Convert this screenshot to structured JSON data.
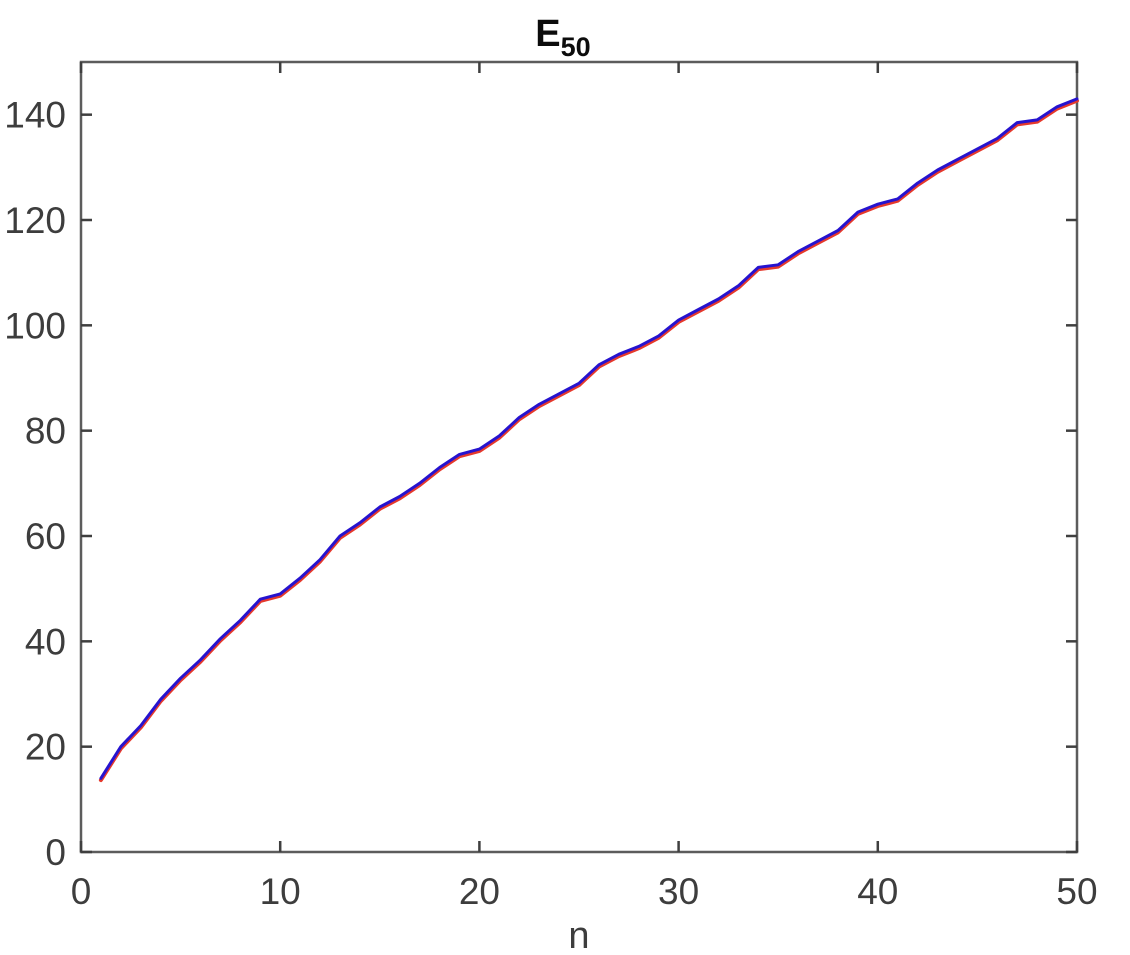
{
  "figure": {
    "background_color": "#ffffff",
    "axis_color": "#5c5c5c",
    "tick_color": "#3f3f3f",
    "label_color": "#3d3d3d"
  },
  "chart_data": {
    "type": "line",
    "title_main": "E",
    "title_subscript": "50",
    "xlabel": "n",
    "ylabel": "",
    "xlim": [
      0,
      50
    ],
    "ylim": [
      0,
      150
    ],
    "xticks": [
      0,
      10,
      20,
      30,
      40,
      50
    ],
    "yticks": [
      0,
      20,
      40,
      60,
      80,
      100,
      120,
      140
    ],
    "grid": false,
    "legend": "none",
    "x": [
      1,
      2,
      3,
      4,
      5,
      6,
      7,
      8,
      9,
      10,
      11,
      12,
      13,
      14,
      15,
      16,
      17,
      18,
      19,
      20,
      21,
      22,
      23,
      24,
      25,
      26,
      27,
      28,
      29,
      30,
      31,
      32,
      33,
      34,
      35,
      36,
      37,
      38,
      39,
      40,
      41,
      42,
      43,
      44,
      45,
      46,
      47,
      48,
      49,
      50
    ],
    "series": [
      {
        "name": "red-line",
        "color": "#e5392c",
        "values": [
          14,
          20,
          24,
          29,
          33,
          36.5,
          40.5,
          44,
          48,
          49,
          52,
          55.5,
          60,
          62.5,
          65.5,
          67.5,
          70,
          73,
          75.5,
          76.5,
          79,
          82.5,
          85,
          87,
          89,
          92.5,
          94.5,
          96,
          98,
          101,
          103,
          105,
          107.5,
          111,
          111.5,
          114,
          116,
          118,
          121.5,
          123,
          124,
          127,
          129.5,
          131.5,
          133.5,
          135.5,
          138.5,
          139,
          141.5,
          143
        ]
      },
      {
        "name": "blue-line",
        "color": "#2613cf",
        "values": [
          14,
          20,
          24,
          29,
          33,
          36.5,
          40.5,
          44,
          48,
          49,
          52,
          55.5,
          60,
          62.5,
          65.5,
          67.5,
          70,
          73,
          75.5,
          76.5,
          79,
          82.5,
          85,
          87,
          89,
          92.5,
          94.5,
          96,
          98,
          101,
          103,
          105,
          107.5,
          111,
          111.5,
          114,
          116,
          118,
          121.5,
          123,
          124,
          127,
          129.5,
          131.5,
          133.5,
          135.5,
          138.5,
          139,
          141.5,
          143
        ]
      }
    ]
  }
}
